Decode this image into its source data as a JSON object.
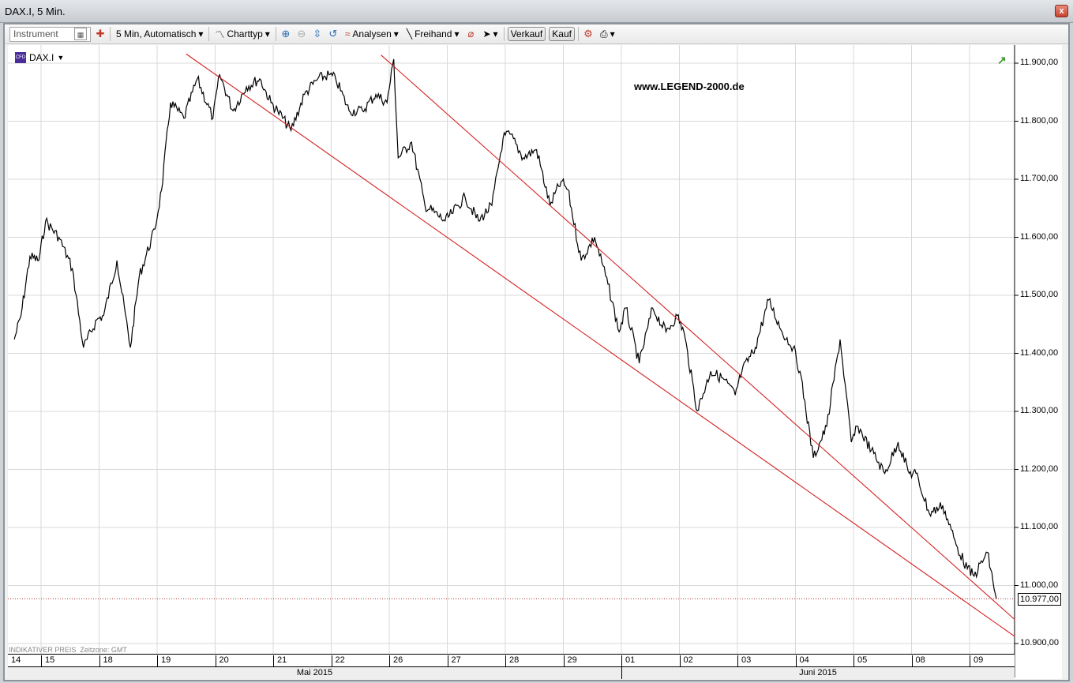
{
  "window": {
    "title": "DAX.I, 5 Min.",
    "close_icon": "close-icon"
  },
  "toolbar": {
    "instrument_placeholder": "Instrument",
    "interval": "5 Min,  Automatisch",
    "charttype": "Charttyp",
    "analysen": "Analysen",
    "freihand": "Freihand",
    "verkauf": "Verkauf",
    "kauf": "Kauf"
  },
  "chart": {
    "symbol": "DAX.I",
    "watermark": "www.LEGEND-2000.de",
    "footnote_price": "INDIKATIVER PREIS",
    "footnote_tz": "Zeitzone: GMT",
    "last_price_label": "10.977,00"
  },
  "chart_data": {
    "type": "line",
    "ylim": [
      10900,
      11900
    ],
    "y_ticks": [
      "10.900,00",
      "11.000,00",
      "11.100,00",
      "11.200,00",
      "11.300,00",
      "11.400,00",
      "11.500,00",
      "11.600,00",
      "11.700,00",
      "11.800,00",
      "11.900,00"
    ],
    "x_day_labels": [
      "14",
      "15",
      "18",
      "19",
      "20",
      "21",
      "22",
      "26",
      "27",
      "28",
      "29",
      "01",
      "02",
      "03",
      "04",
      "05",
      "08",
      "09"
    ],
    "x_month_labels": [
      "Mai 2015",
      "Juni 2015"
    ],
    "grid": true,
    "last_price": 10977,
    "colors": {
      "price": "#000000",
      "trendline": "#d42020",
      "grid": "#d8d8d8"
    },
    "series": [
      {
        "points": [
          [
            "14",
            "14:00",
            11424
          ],
          [
            "14",
            "15:30",
            11465
          ],
          [
            "14",
            "17:30",
            11567
          ],
          [
            "14",
            "19:30",
            11560
          ],
          [
            "15",
            "08:00",
            11628
          ],
          [
            "15",
            "11:00",
            11600
          ],
          [
            "15",
            "14:00",
            11546
          ],
          [
            "15",
            "16:30",
            11410
          ],
          [
            "15",
            "19:30",
            11458
          ],
          [
            "18",
            "08:00",
            11465
          ],
          [
            "18",
            "11:00",
            11560
          ],
          [
            "18",
            "14:00",
            11410
          ],
          [
            "18",
            "16:00",
            11533
          ],
          [
            "18",
            "19:30",
            11614
          ],
          [
            "19",
            "08:00",
            11682
          ],
          [
            "19",
            "10:00",
            11832
          ],
          [
            "19",
            "13:00",
            11805
          ],
          [
            "19",
            "16:00",
            11873
          ],
          [
            "19",
            "19:30",
            11805
          ],
          [
            "20",
            "08:00",
            11880
          ],
          [
            "20",
            "11:00",
            11818
          ],
          [
            "20",
            "14:00",
            11859
          ],
          [
            "20",
            "17:00",
            11873
          ],
          [
            "20",
            "19:30",
            11832
          ],
          [
            "21",
            "08:00",
            11818
          ],
          [
            "21",
            "11:00",
            11784
          ],
          [
            "21",
            "14:00",
            11846
          ],
          [
            "21",
            "17:00",
            11873
          ],
          [
            "21",
            "19:30",
            11880
          ],
          [
            "22",
            "08:00",
            11873
          ],
          [
            "22",
            "11:00",
            11818
          ],
          [
            "22",
            "14:00",
            11818
          ],
          [
            "22",
            "17:00",
            11846
          ],
          [
            "22",
            "19:30",
            11832
          ],
          [
            "26",
            "08:00",
            11907
          ],
          [
            "26",
            "09:00",
            11737
          ],
          [
            "26",
            "12:00",
            11764
          ],
          [
            "26",
            "15:00",
            11655
          ],
          [
            "26",
            "19:30",
            11628
          ],
          [
            "27",
            "08:00",
            11641
          ],
          [
            "27",
            "11:00",
            11669
          ],
          [
            "27",
            "14:00",
            11628
          ],
          [
            "27",
            "17:00",
            11655
          ],
          [
            "27",
            "19:30",
            11771
          ],
          [
            "28",
            "08:00",
            11778
          ],
          [
            "28",
            "11:00",
            11737
          ],
          [
            "28",
            "14:00",
            11751
          ],
          [
            "28",
            "17:00",
            11655
          ],
          [
            "28",
            "19:30",
            11696
          ],
          [
            "29",
            "08:00",
            11682
          ],
          [
            "29",
            "11:00",
            11560
          ],
          [
            "29",
            "14:00",
            11600
          ],
          [
            "29",
            "17:00",
            11519
          ],
          [
            "29",
            "19:30",
            11437
          ],
          [
            "01",
            "08:00",
            11478
          ],
          [
            "01",
            "11:00",
            11383
          ],
          [
            "01",
            "14:00",
            11478
          ],
          [
            "01",
            "17:00",
            11437
          ],
          [
            "01",
            "19:30",
            11465
          ],
          [
            "02",
            "08:00",
            11437
          ],
          [
            "02",
            "11:00",
            11301
          ],
          [
            "02",
            "14:00",
            11369
          ],
          [
            "02",
            "17:00",
            11355
          ],
          [
            "02",
            "19:30",
            11328
          ],
          [
            "03",
            "08:00",
            11369
          ],
          [
            "03",
            "11:00",
            11410
          ],
          [
            "03",
            "14:00",
            11492
          ],
          [
            "03",
            "17:00",
            11437
          ],
          [
            "03",
            "19:30",
            11410
          ],
          [
            "04",
            "08:00",
            11369
          ],
          [
            "04",
            "11:00",
            11220
          ],
          [
            "04",
            "14:00",
            11274
          ],
          [
            "04",
            "17:00",
            11424
          ],
          [
            "04",
            "19:30",
            11247
          ],
          [
            "05",
            "08:00",
            11274
          ],
          [
            "05",
            "11:00",
            11233
          ],
          [
            "05",
            "14:00",
            11193
          ],
          [
            "05",
            "17:00",
            11247
          ],
          [
            "05",
            "19:30",
            11193
          ],
          [
            "08",
            "08:00",
            11193
          ],
          [
            "08",
            "11:00",
            11124
          ],
          [
            "08",
            "14:00",
            11138
          ],
          [
            "08",
            "17:00",
            11070
          ],
          [
            "08",
            "19:30",
            11029
          ],
          [
            "09",
            "08:00",
            11016
          ],
          [
            "09",
            "11:00",
            11057
          ],
          [
            "09",
            "13:00",
            10977
          ]
        ]
      }
    ],
    "trendlines": [
      {
        "from": [
          "19",
          "13:30",
          11916
        ],
        "to": [
          "09",
          "17:10",
          10912
        ]
      },
      {
        "from": [
          "22",
          "18:10",
          11914
        ],
        "to": [
          "09",
          "17:10",
          10941
        ]
      }
    ]
  }
}
